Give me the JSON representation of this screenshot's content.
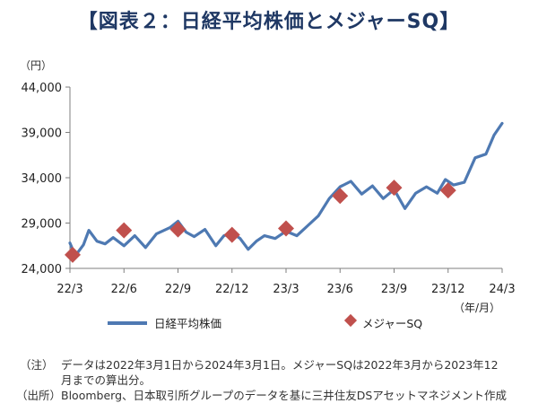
{
  "title": "【図表２：日経平均株価とメジャーSQ】",
  "unit_label": "（円）",
  "x_unit_label": "（年/月）",
  "legend": {
    "line": "日経平均株価",
    "marker": "メジャーSQ"
  },
  "notes": {
    "note1_label": "（注）",
    "note1_line1": "データは2022年3月1日から2024年3月1日。メジャーSQは2022年3月から2023年12",
    "note1_line2": "月までの算出分。",
    "note2_label": "（出所）",
    "note2_text": "Bloomberg、日本取引所グループのデータを基に三井住友DSアセットマネジメント作成"
  },
  "colors": {
    "line": "#4e79b2",
    "marker": "#c0504d",
    "axis": "#7f7f7f",
    "title": "#1f3864"
  },
  "chart_data": {
    "type": "line",
    "title": "日経平均株価とメジャーSQ",
    "xlabel": "年/月",
    "ylabel": "円",
    "ylim": [
      24000,
      44000
    ],
    "yticks": [
      24000,
      29000,
      34000,
      39000,
      44000
    ],
    "ytick_labels": [
      "24,000",
      "29,000",
      "34,000",
      "39,000",
      "44,000"
    ],
    "xticks": [
      "22/3",
      "22/6",
      "22/9",
      "22/12",
      "23/3",
      "23/6",
      "23/9",
      "23/12",
      "24/3"
    ],
    "grid": false,
    "legend_position": "bottom",
    "series": [
      {
        "name": "日経平均株価",
        "style": "line",
        "x": [
          0,
          0.1,
          0.25,
          0.35,
          0.5,
          0.65,
          0.8,
          1.0,
          1.2,
          1.4,
          1.6,
          1.85,
          2.0,
          2.15,
          2.3,
          2.5,
          2.7,
          2.85,
          3.0,
          3.15,
          3.3,
          3.45,
          3.6,
          3.8,
          4.0,
          4.2,
          4.4,
          4.6,
          4.8,
          5.0,
          5.2,
          5.4,
          5.6,
          5.8,
          6.0,
          6.2,
          6.4,
          6.6,
          6.8,
          6.95,
          7.1,
          7.3,
          7.5,
          7.7,
          7.85,
          8.0
        ],
        "y": [
          26800,
          25400,
          26600,
          28200,
          27000,
          26700,
          27400,
          26500,
          27600,
          26300,
          27800,
          28500,
          29200,
          28000,
          27500,
          28300,
          26500,
          27600,
          27900,
          27300,
          26100,
          27000,
          27600,
          27300,
          28100,
          27600,
          28700,
          29800,
          31700,
          33000,
          33600,
          32200,
          33100,
          31700,
          32700,
          30600,
          32300,
          33000,
          32300,
          33800,
          33200,
          33500,
          36200,
          36600,
          38700,
          40000
        ]
      },
      {
        "name": "メジャーSQ",
        "style": "marker",
        "x": [
          0.05,
          1.0,
          2.0,
          3.0,
          4.0,
          5.0,
          6.0,
          7.0
        ],
        "y": [
          25500,
          28200,
          28300,
          27700,
          28400,
          32000,
          32900,
          32600
        ]
      }
    ]
  }
}
